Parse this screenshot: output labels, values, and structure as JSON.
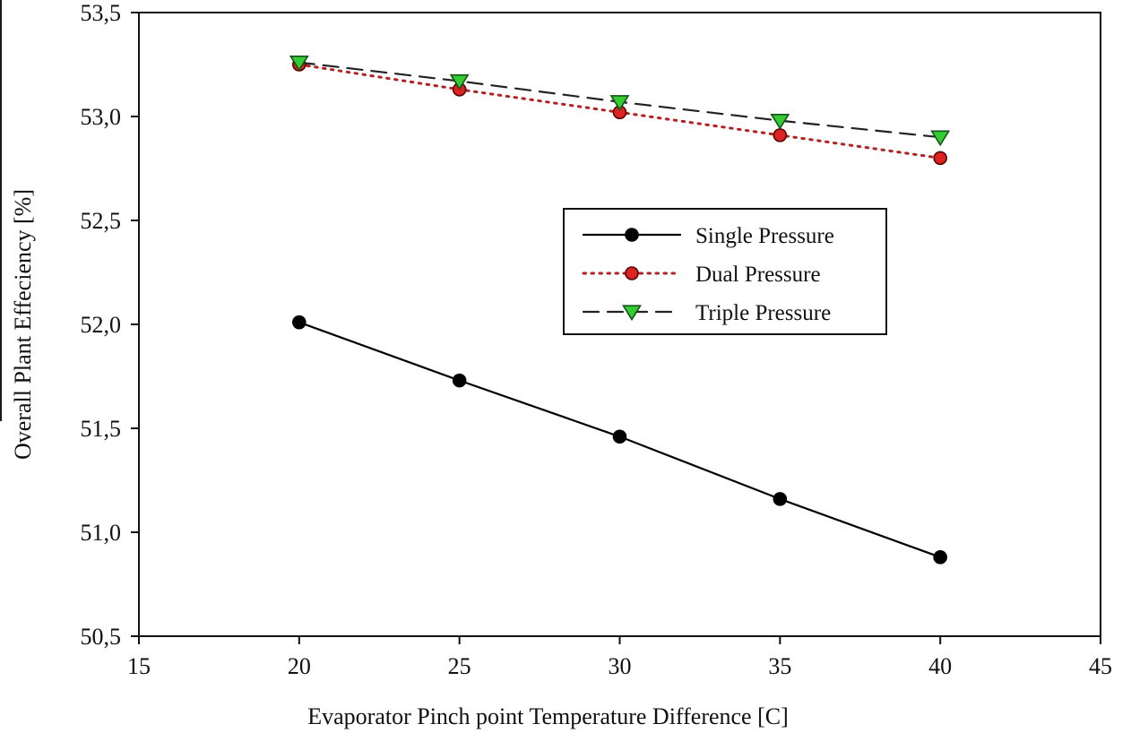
{
  "chart_data": {
    "type": "line",
    "title": "",
    "xlabel": "Evaporator Pinch point Temperature Difference [C]",
    "ylabel": "Overall Plant Effeciency [%]",
    "xlim": [
      15,
      45
    ],
    "ylim": [
      50.5,
      53.5
    ],
    "grid": false,
    "x_ticks": [
      15,
      20,
      25,
      30,
      35,
      40,
      45
    ],
    "x_tick_labels": [
      "15",
      "20",
      "25",
      "30",
      "35",
      "40",
      "45"
    ],
    "y_ticks": [
      50.5,
      51.0,
      51.5,
      52.0,
      52.5,
      53.0,
      53.5
    ],
    "y_tick_labels": [
      "50,5",
      "51,0",
      "51,5",
      "52,0",
      "52,5",
      "53,0",
      "53,5"
    ],
    "x": [
      20,
      25,
      30,
      35,
      40
    ],
    "series": [
      {
        "name": "Single Pressure",
        "values": [
          52.01,
          51.73,
          51.46,
          51.16,
          50.88
        ],
        "line_color": "#000000",
        "line_style": "solid",
        "marker": "circle",
        "marker_fill": "#000000",
        "marker_stroke": "#000000"
      },
      {
        "name": "Dual Pressure",
        "values": [
          53.25,
          53.13,
          53.02,
          52.91,
          52.8
        ],
        "line_color": "#b22222",
        "line_style": "dotted",
        "marker": "circle",
        "marker_fill": "#dd2222",
        "marker_stroke": "#550000"
      },
      {
        "name": "Triple Pressure",
        "values": [
          53.26,
          53.17,
          53.07,
          52.98,
          52.9
        ],
        "line_color": "#222222",
        "line_style": "dashed",
        "marker": "triangle-down",
        "marker_fill": "#33cc33",
        "marker_stroke": "#14521a"
      }
    ],
    "legend": {
      "position": "center",
      "labels": [
        "Single Pressure",
        "Dual Pressure",
        "Triple Pressure"
      ]
    }
  }
}
